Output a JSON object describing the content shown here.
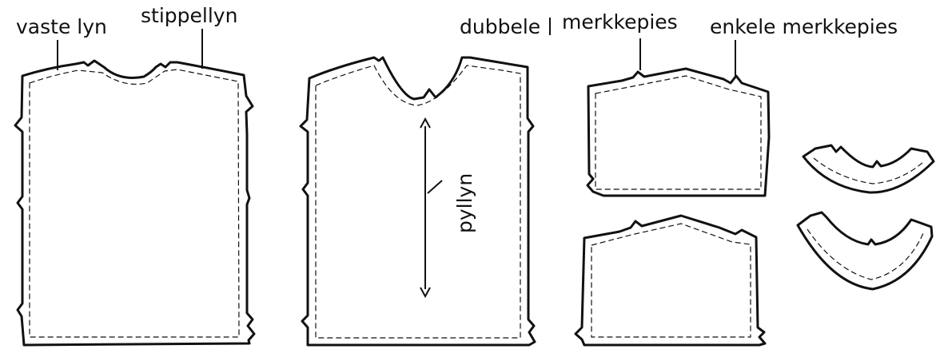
{
  "labels": {
    "solid_line": "vaste lyn",
    "dotted_line": "stippellyn",
    "double": "dubbele",
    "notch": "merkkepies",
    "single_notch": "enkele merkkepies",
    "grainline": "pyllyn"
  },
  "colors": {
    "ink": "#111111",
    "paper": "#ffffff"
  }
}
